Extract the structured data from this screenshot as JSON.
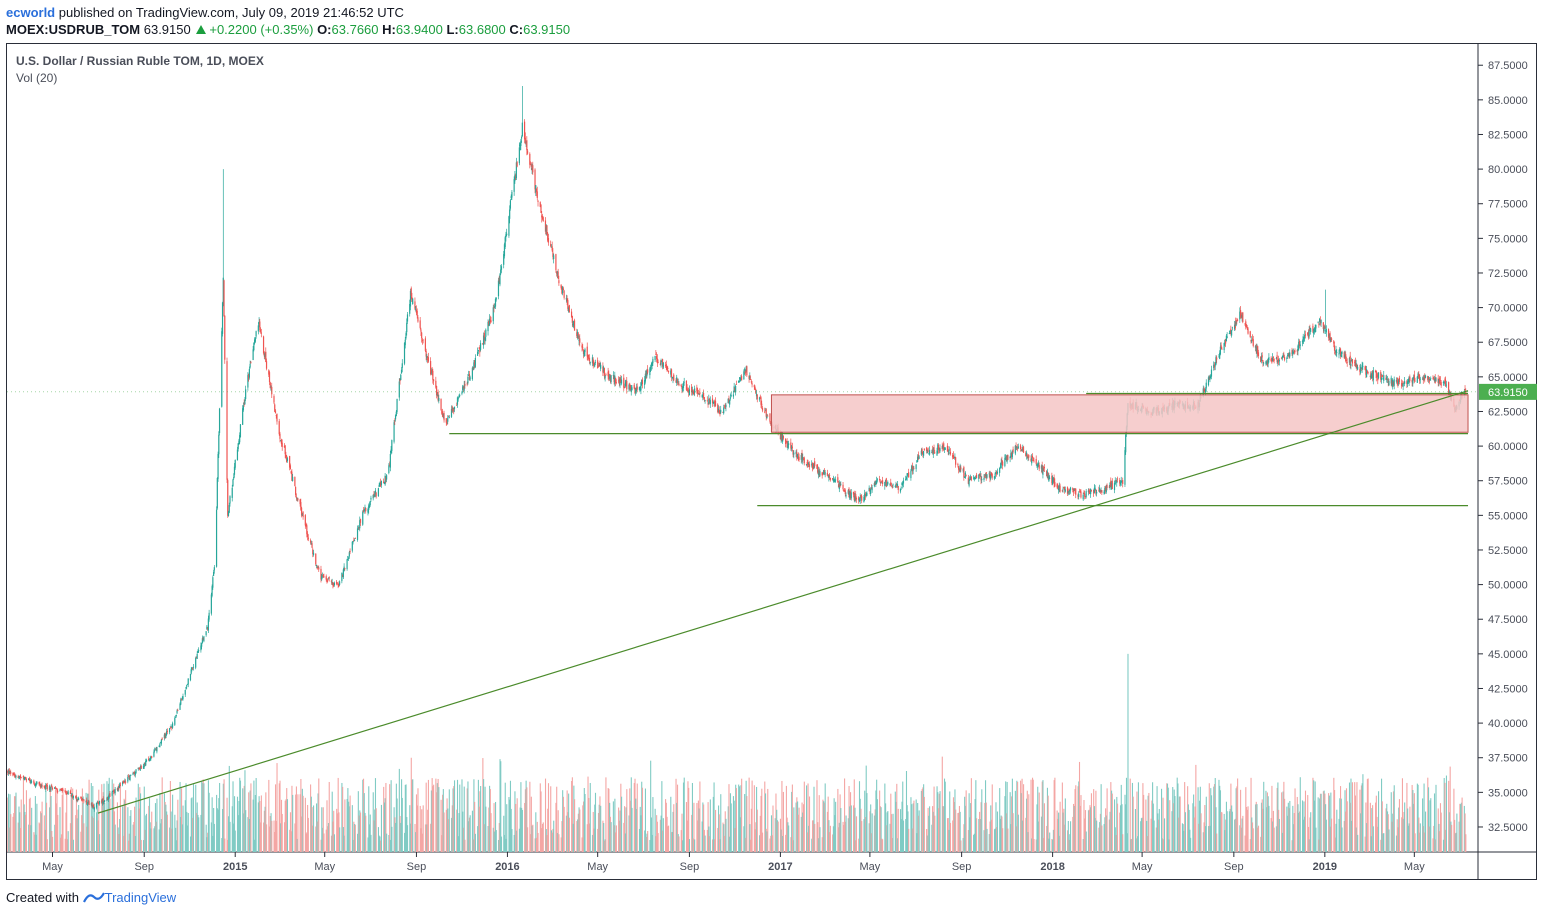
{
  "header": {
    "author": "ecworld",
    "published_text": " published on TradingView.com, July 09, 2019 21:46:52 UTC",
    "symbol": "MOEX:USDRUB_TOM",
    "last": "63.9150",
    "change": "+0.2200 (+0.35%)",
    "open_label": "O:",
    "open": "63.7660",
    "high_label": "H:",
    "high": "63.9400",
    "low_label": "L:",
    "low": "63.6800",
    "close_label": "C:",
    "close": "63.9150"
  },
  "legend": {
    "title": "U.S. Dollar / Russian Ruble TOM, 1D, MOEX",
    "indicator": "Vol (20)"
  },
  "footer": {
    "created_with": "Created with",
    "brand": "TradingView"
  },
  "colors": {
    "up": "#26a69a",
    "down": "#ef5350",
    "up_vol": "#80cbc4",
    "down_vol": "#f4a6a4",
    "line": "#4b8b2b",
    "zone_fill": "#f5c6c6",
    "zone_stroke": "#c0504d",
    "price_tag": "#4caf50"
  },
  "chart_data": {
    "type": "candlestick",
    "symbol": "USDRUB_TOM",
    "timeframe": "1D",
    "ylim": [
      30.0,
      88.0
    ],
    "y_ticks": [
      "32.5000",
      "35.0000",
      "37.5000",
      "40.0000",
      "42.5000",
      "45.0000",
      "47.5000",
      "50.0000",
      "52.5000",
      "55.0000",
      "57.5000",
      "60.0000",
      "62.5000",
      "65.0000",
      "67.5000",
      "70.0000",
      "72.5000",
      "75.0000",
      "77.5000",
      "80.0000",
      "82.5000",
      "85.0000",
      "87.5000"
    ],
    "x_ticks": [
      "May",
      "Sep",
      "2015",
      "May",
      "Sep",
      "2016",
      "May",
      "Sep",
      "2017",
      "May",
      "Sep",
      "2018",
      "May",
      "Sep",
      "2019",
      "May"
    ],
    "x_range": [
      "2014-03-01",
      "2019-08-20"
    ],
    "last_price_label": "63.9150",
    "last_price": 63.915,
    "price_path": [
      [
        "2014-03-01",
        36.5
      ],
      [
        "2014-04-15",
        35.5
      ],
      [
        "2014-05-20",
        35.0
      ],
      [
        "2014-06-25",
        34.0
      ],
      [
        "2014-07-10",
        34.5
      ],
      [
        "2014-08-10",
        36.0
      ],
      [
        "2014-09-10",
        37.5
      ],
      [
        "2014-10-10",
        40.0
      ],
      [
        "2014-11-05",
        44.0
      ],
      [
        "2014-11-25",
        47.0
      ],
      [
        "2014-12-05",
        52.0
      ],
      [
        "2014-12-16",
        72.0
      ],
      [
        "2014-12-22",
        55.0
      ],
      [
        "2015-01-15",
        64.0
      ],
      [
        "2015-02-01",
        69.0
      ],
      [
        "2015-03-01",
        61.0
      ],
      [
        "2015-04-01",
        55.0
      ],
      [
        "2015-04-25",
        50.5
      ],
      [
        "2015-05-20",
        50.0
      ],
      [
        "2015-06-20",
        55.0
      ],
      [
        "2015-07-25",
        58.0
      ],
      [
        "2015-08-24",
        71.0
      ],
      [
        "2015-09-15",
        66.5
      ],
      [
        "2015-10-10",
        61.5
      ],
      [
        "2015-11-15",
        65.5
      ],
      [
        "2015-12-15",
        70.0
      ],
      [
        "2016-01-21",
        83.0
      ],
      [
        "2016-02-10",
        78.0
      ],
      [
        "2016-03-10",
        72.0
      ],
      [
        "2016-04-10",
        67.0
      ],
      [
        "2016-05-15",
        65.0
      ],
      [
        "2016-06-25",
        64.0
      ],
      [
        "2016-07-15",
        66.5
      ],
      [
        "2016-08-20",
        64.5
      ],
      [
        "2016-09-20",
        63.5
      ],
      [
        "2016-10-15",
        62.5
      ],
      [
        "2016-11-15",
        65.5
      ],
      [
        "2016-12-20",
        61.5
      ],
      [
        "2017-01-20",
        59.5
      ],
      [
        "2017-03-01",
        58.0
      ],
      [
        "2017-04-15",
        56.0
      ],
      [
        "2017-05-10",
        57.5
      ],
      [
        "2017-06-10",
        57.0
      ],
      [
        "2017-07-10",
        59.5
      ],
      [
        "2017-08-10",
        60.0
      ],
      [
        "2017-09-10",
        57.5
      ],
      [
        "2017-10-15",
        58.0
      ],
      [
        "2017-11-15",
        60.0
      ],
      [
        "2017-12-15",
        58.5
      ],
      [
        "2018-01-10",
        57.0
      ],
      [
        "2018-02-10",
        56.5
      ],
      [
        "2018-03-15",
        57.0
      ],
      [
        "2018-04-05",
        57.5
      ],
      [
        "2018-04-12",
        63.0
      ],
      [
        "2018-05-15",
        62.5
      ],
      [
        "2018-06-15",
        63.0
      ],
      [
        "2018-07-15",
        63.0
      ],
      [
        "2018-08-10",
        66.5
      ],
      [
        "2018-09-10",
        69.5
      ],
      [
        "2018-10-10",
        66.0
      ],
      [
        "2018-11-15",
        66.5
      ],
      [
        "2018-12-25",
        69.0
      ],
      [
        "2019-01-15",
        67.0
      ],
      [
        "2019-02-15",
        65.7
      ],
      [
        "2019-03-15",
        65.0
      ],
      [
        "2019-04-10",
        64.5
      ],
      [
        "2019-05-10",
        65.0
      ],
      [
        "2019-06-10",
        64.5
      ],
      [
        "2019-06-25",
        62.8
      ],
      [
        "2019-07-09",
        63.9
      ]
    ],
    "extreme_wicks": [
      [
        "2014-12-16",
        80.0
      ],
      [
        "2016-01-21",
        86.0
      ],
      [
        "2019-01-02",
        71.3
      ]
    ],
    "drawings": {
      "trendline": {
        "from": [
          "2014-07-01",
          33.5
        ],
        "to": [
          "2019-07-12",
          64.0
        ]
      },
      "horizontal_lines": [
        {
          "from": "2015-10-15",
          "to": "2019-07-12",
          "price": 60.9
        },
        {
          "from": "2016-12-01",
          "to": "2019-07-12",
          "price": 55.7
        },
        {
          "from": "2018-02-15",
          "to": "2019-07-12",
          "price": 63.8
        }
      ],
      "zone": {
        "from": "2016-12-20",
        "to": "2019-07-12",
        "price_top": 63.7,
        "price_bottom": 61.0
      }
    },
    "volume": {
      "panel_price_range": [
        30.0,
        45.5
      ],
      "spikes": [
        [
          "2018-04-12",
          45.0
        ]
      ]
    }
  }
}
